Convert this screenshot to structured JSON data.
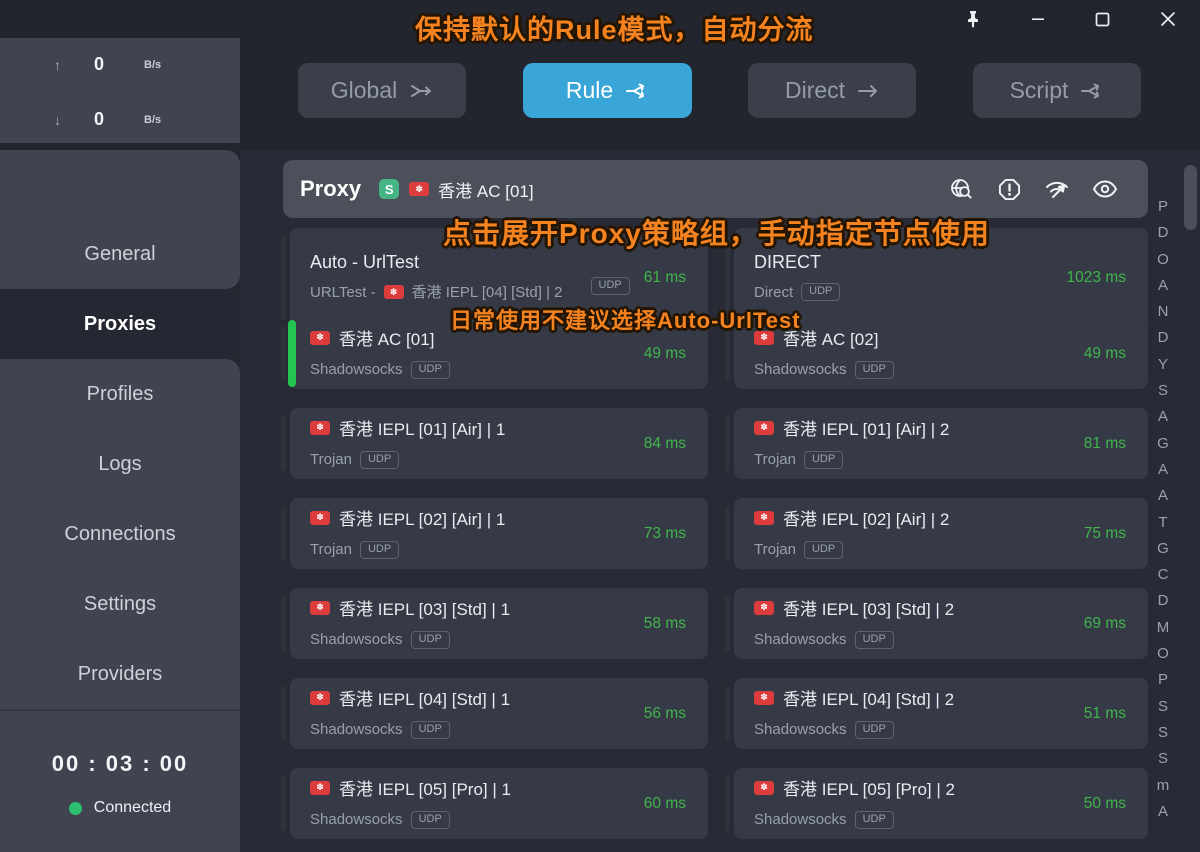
{
  "window": {
    "controls": [
      {
        "name": "pin"
      },
      {
        "name": "minimize"
      },
      {
        "name": "maximize"
      },
      {
        "name": "close"
      }
    ]
  },
  "annotations": {
    "top": "保持默认的Rule模式，自动分流",
    "middle": "点击展开Proxy策略组，手动指定节点使用",
    "bottom": "日常使用不建议选择Auto-UrlTest"
  },
  "modes": {
    "items": [
      {
        "label": "Global",
        "icon": "merge-arrow-icon",
        "active": false
      },
      {
        "label": "Rule",
        "icon": "split-arrow-icon",
        "active": true
      },
      {
        "label": "Direct",
        "icon": "arrow-right-icon",
        "active": false
      },
      {
        "label": "Script",
        "icon": "split-arrow-icon",
        "active": false
      }
    ]
  },
  "sidebar": {
    "traffic": {
      "upload": {
        "arrow": "↑",
        "value": "0",
        "unit": "B/s"
      },
      "download": {
        "arrow": "↓",
        "value": "0",
        "unit": "B/s"
      }
    },
    "nav": [
      {
        "label": "General",
        "active": false
      },
      {
        "label": "Proxies",
        "active": true
      },
      {
        "label": "Profiles",
        "active": false
      },
      {
        "label": "Logs",
        "active": false
      },
      {
        "label": "Connections",
        "active": false
      },
      {
        "label": "Settings",
        "active": false
      },
      {
        "label": "Providers",
        "active": false
      }
    ],
    "timer": "00 : 03 : 00",
    "status": {
      "label": "Connected",
      "color": "#2fbf71"
    }
  },
  "proxy_group": {
    "name": "Proxy",
    "badge": "S",
    "selected_node": "香港 AC [01]",
    "actions": [
      "globe-search-icon",
      "alert-icon",
      "speedtest-icon",
      "eye-icon"
    ]
  },
  "proxies": {
    "udp_label": "UDP",
    "cards": [
      {
        "title": "Auto - UrlTest",
        "title_flag": false,
        "subtitle_prefix": "URLTest - ",
        "subtitle_flag": true,
        "subtitle": "香港 IEPL [04] [Std] | 2",
        "udp": true,
        "udp_separate": true,
        "latency": "61 ms",
        "tall": true,
        "selected": false
      },
      {
        "title": "DIRECT",
        "title_flag": false,
        "subtitle": "Direct",
        "udp": true,
        "latency": "1023 ms",
        "tall": true,
        "selected": false
      },
      {
        "title": "香港 AC [01]",
        "title_flag": true,
        "subtitle": "Shadowsocks",
        "udp": true,
        "latency": "49 ms",
        "selected": true
      },
      {
        "title": "香港 AC [02]",
        "title_flag": true,
        "subtitle": "Shadowsocks",
        "udp": true,
        "latency": "49 ms",
        "selected": false
      },
      {
        "title": "香港 IEPL [01] [Air] | 1",
        "title_flag": true,
        "subtitle": "Trojan",
        "udp": true,
        "latency": "84 ms",
        "selected": false
      },
      {
        "title": "香港 IEPL [01] [Air] | 2",
        "title_flag": true,
        "subtitle": "Trojan",
        "udp": true,
        "latency": "81 ms",
        "selected": false
      },
      {
        "title": "香港 IEPL [02] [Air] | 1",
        "title_flag": true,
        "subtitle": "Trojan",
        "udp": true,
        "latency": "73 ms",
        "selected": false
      },
      {
        "title": "香港 IEPL [02] [Air] | 2",
        "title_flag": true,
        "subtitle": "Trojan",
        "udp": true,
        "latency": "75 ms",
        "selected": false
      },
      {
        "title": "香港 IEPL [03] [Std] | 1",
        "title_flag": true,
        "subtitle": "Shadowsocks",
        "udp": true,
        "latency": "58 ms",
        "selected": false
      },
      {
        "title": "香港 IEPL [03] [Std] | 2",
        "title_flag": true,
        "subtitle": "Shadowsocks",
        "udp": true,
        "latency": "69 ms",
        "selected": false
      },
      {
        "title": "香港 IEPL [04] [Std] | 1",
        "title_flag": true,
        "subtitle": "Shadowsocks",
        "udp": true,
        "latency": "56 ms",
        "selected": false
      },
      {
        "title": "香港 IEPL [04] [Std] | 2",
        "title_flag": true,
        "subtitle": "Shadowsocks",
        "udp": true,
        "latency": "51 ms",
        "selected": false
      },
      {
        "title": "香港 IEPL [05] [Pro] | 1",
        "title_flag": true,
        "subtitle": "Shadowsocks",
        "udp": true,
        "latency": "60 ms",
        "selected": false
      },
      {
        "title": "香港 IEPL [05] [Pro] | 2",
        "title_flag": true,
        "subtitle": "Shadowsocks",
        "udp": true,
        "latency": "50 ms",
        "selected": false
      }
    ]
  },
  "letter_index": [
    "P",
    "D",
    "O",
    "A",
    "N",
    "D",
    "Y",
    "S",
    "A",
    "G",
    "A",
    "A",
    "T",
    "G",
    "C",
    "D",
    "M",
    "O",
    "P",
    "S",
    "S",
    "S",
    "m",
    "A"
  ],
  "colors": {
    "accent_blue": "#3aa6d8",
    "latency_green": "#41b54c",
    "status_green": "#2fbf71",
    "selected_green": "#25c552",
    "badge_green": "#45b585",
    "flag_red": "#dd3c3c",
    "annotation_orange": "#f5831f"
  }
}
